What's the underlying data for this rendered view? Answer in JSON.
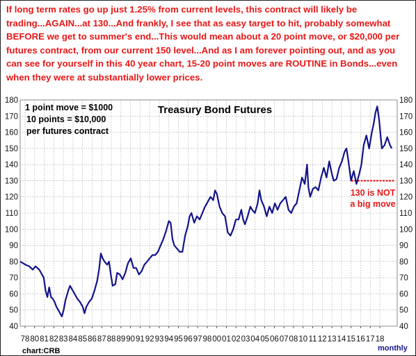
{
  "headline": {
    "segments": [
      {
        "text": "If long term rates go up just 1.25% from current levels, this contract will likely be trading...",
        "bold_caps": false
      },
      {
        "text": "AGAIN",
        "bold_caps": true
      },
      {
        "text": "...at 130...And frankly, I see that as easy target to hit, probably somewhat ",
        "bold_caps": false
      },
      {
        "text": "BEFORE",
        "bold_caps": true
      },
      {
        "text": " we get to summer's end...This would mean about a 20 point move, or $20,000 per futures contract, from our current 150 level...And as I am forever pointing out, and as you can see for yourself in this 40 year chart, 15-20 point moves are ",
        "bold_caps": false
      },
      {
        "text": "ROUTINE",
        "bold_caps": true
      },
      {
        "text": " in Bonds...even when they were at substantially lower prices.",
        "bold_caps": false
      }
    ],
    "color": "#e81717"
  },
  "chart_data": {
    "type": "line",
    "title": "Treasury Bond Futures",
    "note_lines": [
      "1 point move = $1000",
      "10 points = $10,000",
      "per futures contract"
    ],
    "xlabel": "",
    "ylabel": "",
    "frequency_label": "monthly",
    "source_label": "chart:CRB",
    "ylim": [
      40,
      180
    ],
    "xlim": [
      1977.3,
      2018.9
    ],
    "y_ticks": [
      40,
      50,
      60,
      70,
      80,
      90,
      100,
      110,
      120,
      130,
      140,
      150,
      160,
      170,
      180
    ],
    "x_tick_labels": [
      "78",
      "80",
      "81",
      "82",
      "83",
      "84",
      "85",
      "86",
      "87",
      "88",
      "89",
      "90",
      "91",
      "92",
      "93",
      "94",
      "95",
      "96",
      "97",
      "98",
      "00",
      "01",
      "02",
      "03",
      "04",
      "05",
      "06",
      "07",
      "08",
      "10",
      "11",
      "12",
      "13",
      "14",
      "15",
      "16",
      "17",
      "18"
    ],
    "grid": true,
    "line_color": "#12128a",
    "series": [
      {
        "x": [
          1977.3,
          1977.6,
          1977.9,
          1978.3,
          1978.7,
          1979.0,
          1979.4,
          1979.7,
          1979.9,
          1980.1,
          1980.2,
          1980.3,
          1980.5,
          1980.7,
          1980.9,
          1981.1,
          1981.3,
          1981.5,
          1981.7,
          1981.9,
          1982.1,
          1982.3,
          1982.6,
          1982.8,
          1983.0,
          1983.3,
          1983.6,
          1983.9,
          1984.2,
          1984.4,
          1984.6,
          1984.9,
          1985.2,
          1985.5,
          1985.8,
          1986.0,
          1986.2,
          1986.4,
          1986.6,
          1986.9,
          1987.1,
          1987.3,
          1987.5,
          1987.8,
          1988.0,
          1988.3,
          1988.6,
          1988.9,
          1989.2,
          1989.5,
          1989.8,
          1990.1,
          1990.4,
          1990.7,
          1991.0,
          1991.3,
          1991.6,
          1991.9,
          1992.2,
          1992.5,
          1992.8,
          1993.1,
          1993.4,
          1993.7,
          1993.9,
          1994.1,
          1994.3,
          1994.6,
          1994.9,
          1995.2,
          1995.5,
          1995.8,
          1996.0,
          1996.2,
          1996.5,
          1996.8,
          1997.1,
          1997.4,
          1997.7,
          1998.0,
          1998.3,
          1998.6,
          1998.8,
          1999.0,
          1999.3,
          1999.6,
          1999.9,
          2000.2,
          2000.5,
          2000.8,
          2001.1,
          2001.4,
          2001.7,
          2001.9,
          2002.1,
          2002.4,
          2002.7,
          2002.9,
          2003.2,
          2003.5,
          2003.7,
          2003.9,
          2004.2,
          2004.5,
          2004.8,
          2005.1,
          2005.4,
          2005.7,
          2006.0,
          2006.3,
          2006.6,
          2006.9,
          2007.2,
          2007.5,
          2007.8,
          2008.1,
          2008.4,
          2008.7,
          2008.95,
          2009.1,
          2009.3,
          2009.6,
          2009.9,
          2010.2,
          2010.5,
          2010.8,
          2011.1,
          2011.4,
          2011.7,
          2011.9,
          2012.2,
          2012.5,
          2012.8,
          2013.1,
          2013.3,
          2013.5,
          2013.8,
          2014.1,
          2014.4,
          2014.7,
          2014.95,
          2015.2,
          2015.5,
          2015.8,
          2016.1,
          2016.3,
          2016.5,
          2016.7,
          2016.9,
          2017.2,
          2017.5,
          2017.8,
          2018.1,
          2018.3
        ],
        "y": [
          80,
          79,
          78,
          77,
          75,
          77,
          75,
          72,
          70,
          62,
          60,
          58,
          64,
          58,
          57,
          55,
          52,
          50,
          48,
          46,
          50,
          56,
          62,
          65,
          63,
          60,
          57,
          55,
          52,
          48,
          52,
          55,
          57,
          62,
          68,
          75,
          85,
          82,
          80,
          78,
          80,
          72,
          65,
          66,
          73,
          72,
          69,
          73,
          79,
          82,
          76,
          76,
          72,
          74,
          78,
          80,
          82,
          84,
          84,
          86,
          90,
          94,
          99,
          105,
          104,
          94,
          90,
          88,
          86,
          86,
          96,
          102,
          108,
          110,
          104,
          108,
          106,
          110,
          114,
          117,
          120,
          118,
          124,
          122,
          114,
          110,
          108,
          98,
          96,
          100,
          106,
          106,
          112,
          106,
          103,
          108,
          114,
          112,
          110,
          116,
          124,
          118,
          114,
          108,
          114,
          110,
          116,
          112,
          116,
          118,
          120,
          112,
          110,
          114,
          116,
          124,
          132,
          128,
          140,
          126,
          120,
          125,
          126,
          124,
          132,
          138,
          132,
          142,
          134,
          130,
          131,
          138,
          142,
          148,
          150,
          143,
          130,
          136,
          128,
          134,
          140,
          152,
          158,
          150,
          160,
          165,
          172,
          176,
          168,
          150,
          152,
          157,
          152,
          150
        ]
      }
    ],
    "annotations": [
      {
        "text": "130 is NOT",
        "color": "#e81717"
      },
      {
        "text": "a big move",
        "color": "#e81717"
      }
    ],
    "reference_level": 130
  }
}
